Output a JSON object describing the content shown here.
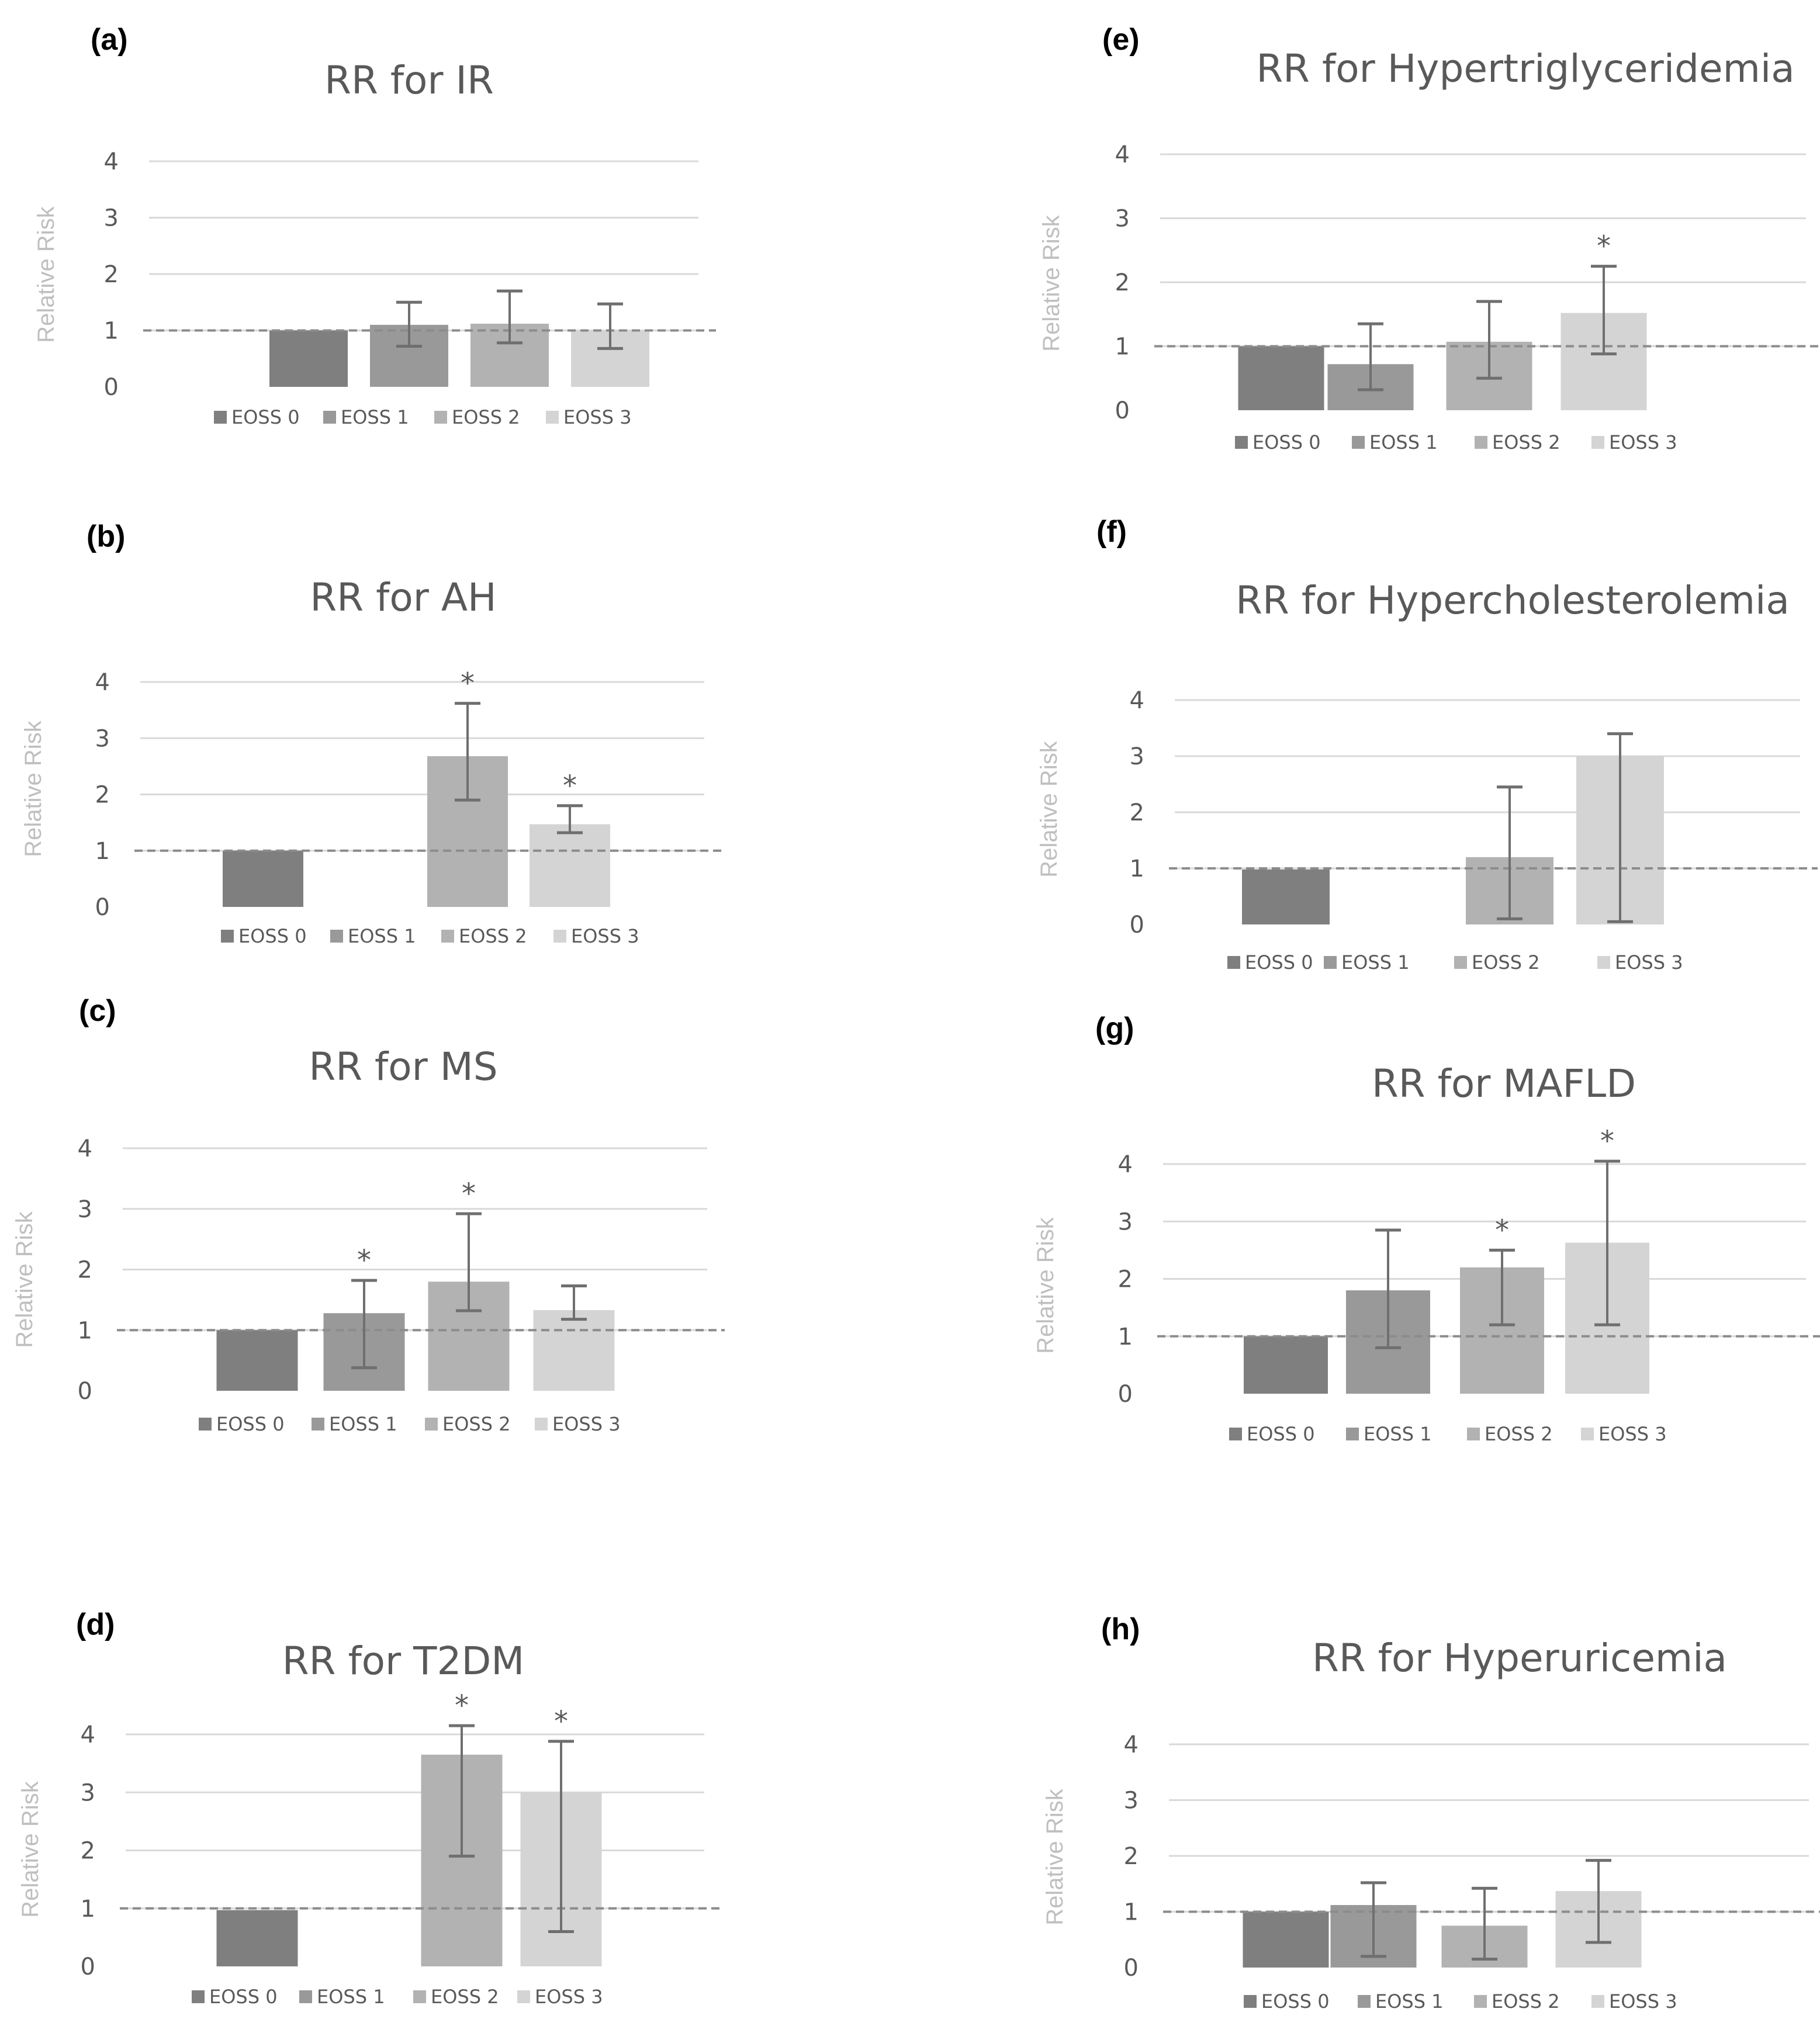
{
  "colors": {
    "eoss0": "#7f7f7f",
    "eoss1": "#999999",
    "eoss2": "#b2b2b2",
    "eoss3": "#d4d4d4",
    "grid": "#d9d9d9",
    "reference_line": "#8c8c8c",
    "error_bar": "#6f6f6f",
    "text": "#595959",
    "y_label": "#bfbfbf"
  },
  "chart_data": [
    {
      "panel": "(a)",
      "type": "bar",
      "title": "RR for IR",
      "ylabel": "Relative Risk",
      "xlabel": "",
      "ylim": [
        0,
        4
      ],
      "yticks": [
        0,
        1,
        2,
        3,
        4
      ],
      "grid": true,
      "reference_line": 1,
      "categories": [
        "EOSS 0",
        "EOSS 1",
        "EOSS 2",
        "EOSS 3"
      ],
      "values": [
        1.0,
        1.1,
        1.12,
        1.0
      ],
      "ci_low": [
        null,
        0.72,
        0.78,
        0.68
      ],
      "ci_high": [
        null,
        1.5,
        1.7,
        1.47
      ],
      "significant": [
        false,
        false,
        false,
        false
      ]
    },
    {
      "panel": "(b)",
      "type": "bar",
      "title": "RR for AH",
      "ylabel": "Relative Risk",
      "xlabel": "",
      "ylim": [
        0,
        4
      ],
      "yticks": [
        0,
        1,
        2,
        3,
        4
      ],
      "grid": true,
      "reference_line": 1,
      "categories": [
        "EOSS 0",
        "EOSS 1",
        "EOSS 2",
        "EOSS 3"
      ],
      "values": [
        1.0,
        null,
        2.68,
        1.47
      ],
      "ci_low": [
        null,
        null,
        1.9,
        1.32
      ],
      "ci_high": [
        null,
        null,
        3.62,
        1.8
      ],
      "significant": [
        false,
        false,
        true,
        true
      ]
    },
    {
      "panel": "(c)",
      "type": "bar",
      "title": "RR for MS",
      "ylabel": "Relative Risk",
      "xlabel": "",
      "ylim": [
        0,
        4
      ],
      "yticks": [
        0,
        1,
        2,
        3,
        4
      ],
      "grid": true,
      "reference_line": 1,
      "categories": [
        "EOSS 0",
        "EOSS 1",
        "EOSS 2",
        "EOSS 3"
      ],
      "values": [
        1.0,
        1.28,
        1.8,
        1.33
      ],
      "ci_low": [
        null,
        0.38,
        1.32,
        1.18
      ],
      "ci_high": [
        null,
        1.82,
        2.92,
        1.73
      ],
      "significant": [
        false,
        true,
        true,
        false
      ]
    },
    {
      "panel": "(d)",
      "type": "bar",
      "title": "RR for T2DM",
      "ylabel": "Relative Risk",
      "xlabel": "",
      "ylim": [
        0,
        4
      ],
      "yticks": [
        0,
        1,
        2,
        3,
        4
      ],
      "grid": true,
      "reference_line": 1,
      "categories": [
        "EOSS 0",
        "EOSS 1",
        "EOSS 2",
        "EOSS 3"
      ],
      "values": [
        0.97,
        null,
        3.65,
        3.0
      ],
      "ci_low": [
        null,
        null,
        1.9,
        0.6
      ],
      "ci_high": [
        null,
        null,
        4.15,
        3.88
      ],
      "significant": [
        false,
        false,
        true,
        true
      ]
    },
    {
      "panel": "(e)",
      "type": "bar",
      "title": "RR for Hypertriglyceridemia",
      "ylabel": "Relative Risk",
      "xlabel": "",
      "ylim": [
        0,
        4
      ],
      "yticks": [
        0,
        1,
        2,
        3,
        4
      ],
      "grid": true,
      "reference_line": 1,
      "categories": [
        "EOSS 0",
        "EOSS 1",
        "EOSS 2",
        "EOSS 3"
      ],
      "values": [
        1.0,
        0.72,
        1.07,
        1.52
      ],
      "ci_low": [
        null,
        0.32,
        0.5,
        0.88
      ],
      "ci_high": [
        null,
        1.35,
        1.7,
        2.25
      ],
      "significant": [
        false,
        false,
        false,
        true
      ]
    },
    {
      "panel": "(f)",
      "type": "bar",
      "title": "RR for Hypercholesterolemia",
      "ylabel": "Relative Risk",
      "xlabel": "",
      "ylim": [
        0,
        4
      ],
      "yticks": [
        0,
        1,
        2,
        3,
        4
      ],
      "grid": true,
      "reference_line": 1,
      "categories": [
        "EOSS 0",
        "EOSS 1",
        "EOSS 2",
        "EOSS 3"
      ],
      "values": [
        0.98,
        null,
        1.2,
        3.0
      ],
      "ci_low": [
        null,
        null,
        0.1,
        0.05
      ],
      "ci_high": [
        null,
        null,
        2.45,
        3.4
      ],
      "significant": [
        false,
        false,
        false,
        false
      ]
    },
    {
      "panel": "(g)",
      "type": "bar",
      "title": "RR for MAFLD",
      "ylabel": "Relative Risk",
      "xlabel": "",
      "ylim": [
        0,
        4
      ],
      "yticks": [
        0,
        1,
        2,
        3,
        4
      ],
      "grid": true,
      "reference_line": 1,
      "categories": [
        "EOSS 0",
        "EOSS 1",
        "EOSS 2",
        "EOSS 3"
      ],
      "values": [
        1.0,
        1.8,
        2.2,
        2.63
      ],
      "ci_low": [
        null,
        0.8,
        1.2,
        1.2
      ],
      "ci_high": [
        null,
        2.85,
        2.5,
        4.05
      ],
      "significant": [
        false,
        false,
        true,
        true
      ]
    },
    {
      "panel": "(h)",
      "type": "bar",
      "title": "RR for Hyperuricemia",
      "ylabel": "Relative Risk",
      "xlabel": "",
      "ylim": [
        0,
        4
      ],
      "yticks": [
        0,
        1,
        2,
        3,
        4
      ],
      "grid": true,
      "reference_line": 1,
      "categories": [
        "EOSS 0",
        "EOSS 1",
        "EOSS 2",
        "EOSS 3"
      ],
      "values": [
        1.0,
        1.12,
        0.75,
        1.37
      ],
      "ci_low": [
        null,
        0.2,
        0.15,
        0.45
      ],
      "ci_high": [
        null,
        1.52,
        1.42,
        1.92
      ],
      "significant": [
        false,
        false,
        false,
        false
      ]
    }
  ]
}
